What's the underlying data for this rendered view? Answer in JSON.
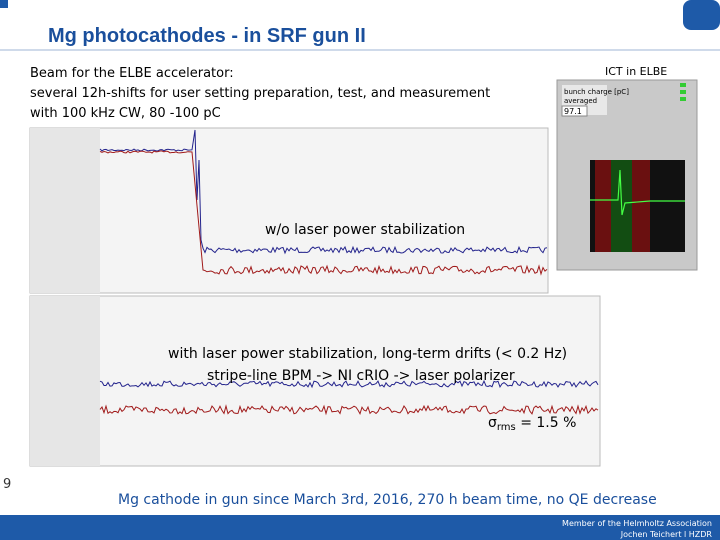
{
  "header": {
    "title": "Mg photocathodes - in SRF gun II"
  },
  "intro": [
    "Beam for the  ELBE accelerator:",
    "several 12h-shifts for user setting preparation, test, and measurement",
    "with 100 kHz CW, 80 -100 pC"
  ],
  "ict": {
    "title": "ICT in ELBE",
    "label": "bunch charge [pC]",
    "sublabel": "averaged",
    "reading": "97.1"
  },
  "plot_top": {
    "caption": "w/o laser power stabilization"
  },
  "plot_bottom": {
    "caption_lines": [
      "with laser power stabilization, long-term drifts (< 0.2 Hz)",
      "stripe-line BPM -> NI cRIO -> laser polarizer"
    ],
    "sigma": {
      "symbol": "σ",
      "subscript": "rms",
      "text": " = 1.5 %"
    }
  },
  "summary": "Mg cathode in gun since March 3rd, 2016, 270 h beam time, no QE decrease",
  "page_number": "9",
  "footer": [
    "Member of the Helmholtz Association",
    "Jochen Teichert  l HZDR"
  ]
}
